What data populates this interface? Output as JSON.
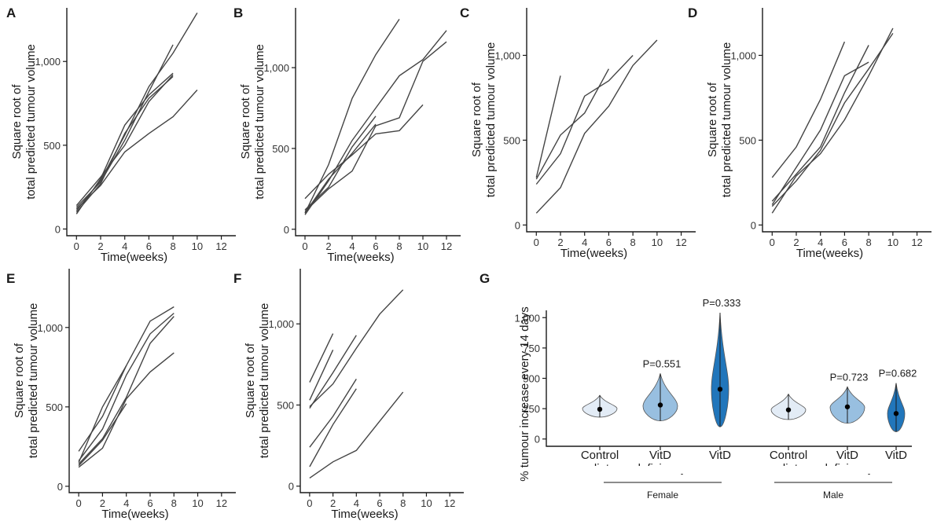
{
  "colors": {
    "line": "#444444",
    "control": "#e3ecf6",
    "deficiency": "#98bfe0",
    "excess": "#2176bb"
  },
  "chart_data": [
    {
      "panel": "A",
      "type": "line",
      "ylabel_lines": [
        "Square root of",
        "total predicted tumour volume"
      ],
      "xlabel": "Time(weeks)",
      "xticks": [
        0,
        2,
        4,
        6,
        8,
        10,
        12
      ],
      "yticks": [
        {
          "v": 0,
          "t": "0"
        },
        {
          "v": 500,
          "t": "500"
        },
        {
          "v": 1000,
          "t": "1,000"
        }
      ],
      "ylim": [
        -40,
        1320
      ],
      "series": [
        {
          "x": [
            0,
            2,
            4,
            6,
            8,
            10
          ],
          "y": [
            110,
            290,
            560,
            850,
            1050,
            1290
          ]
        },
        {
          "x": [
            0,
            2,
            4,
            6,
            8
          ],
          "y": [
            90,
            300,
            620,
            800,
            930
          ]
        },
        {
          "x": [
            0,
            2,
            4,
            6,
            8
          ],
          "y": [
            130,
            280,
            530,
            820,
            1100
          ]
        },
        {
          "x": [
            0,
            2,
            4,
            6,
            8
          ],
          "y": [
            100,
            270,
            570,
            780,
            910
          ]
        },
        {
          "x": [
            0,
            2,
            4,
            6,
            8,
            10
          ],
          "y": [
            120,
            260,
            460,
            570,
            670,
            830
          ]
        },
        {
          "x": [
            0,
            2,
            4,
            6,
            8
          ],
          "y": [
            140,
            310,
            500,
            760,
            920
          ]
        }
      ]
    },
    {
      "panel": "B",
      "type": "line",
      "ylabel_lines": [
        "Square root of",
        "total predicted tumour volume"
      ],
      "xlabel": "Time(weeks)",
      "xticks": [
        0,
        2,
        4,
        6,
        8,
        10,
        12
      ],
      "yticks": [
        {
          "v": 0,
          "t": "0"
        },
        {
          "v": 500,
          "t": "500"
        },
        {
          "v": 1000,
          "t": "1,000"
        }
      ],
      "ylim": [
        -40,
        1370
      ],
      "series": [
        {
          "x": [
            0,
            2,
            4,
            6,
            8
          ],
          "y": [
            100,
            400,
            810,
            1080,
            1300
          ]
        },
        {
          "x": [
            0,
            2,
            4,
            6,
            8,
            10,
            12
          ],
          "y": [
            90,
            300,
            550,
            750,
            950,
            1050,
            1230
          ]
        },
        {
          "x": [
            0,
            2,
            4,
            6,
            8,
            10,
            12
          ],
          "y": [
            110,
            250,
            360,
            640,
            690,
            1040,
            1160
          ]
        },
        {
          "x": [
            0,
            2,
            4,
            6,
            8,
            10
          ],
          "y": [
            190,
            340,
            460,
            590,
            610,
            770
          ]
        },
        {
          "x": [
            0,
            2,
            4,
            6
          ],
          "y": [
            120,
            260,
            510,
            700
          ]
        },
        {
          "x": [
            0,
            2,
            4,
            6
          ],
          "y": [
            100,
            310,
            470,
            650
          ]
        }
      ]
    },
    {
      "panel": "C",
      "type": "line",
      "ylabel_lines": [
        "Square root of",
        "total predicted tumour volume"
      ],
      "xlabel": "Time(weeks)",
      "xticks": [
        0,
        2,
        4,
        6,
        8,
        10,
        12
      ],
      "yticks": [
        {
          "v": 0,
          "t": "0"
        },
        {
          "v": 500,
          "t": "500"
        },
        {
          "v": 1000,
          "t": "1,000"
        }
      ],
      "ylim": [
        -40,
        1280
      ],
      "series": [
        {
          "x": [
            0,
            2
          ],
          "y": [
            280,
            880
          ]
        },
        {
          "x": [
            0,
            2,
            4,
            6,
            8
          ],
          "y": [
            240,
            420,
            760,
            850,
            1000
          ]
        },
        {
          "x": [
            0,
            2,
            4,
            6
          ],
          "y": [
            270,
            530,
            660,
            920
          ]
        },
        {
          "x": [
            0,
            2,
            4,
            6,
            8,
            10
          ],
          "y": [
            70,
            220,
            540,
            700,
            940,
            1090
          ]
        }
      ]
    },
    {
      "panel": "D",
      "type": "line",
      "ylabel_lines": [
        "Square root of",
        "total predicted tumour volume"
      ],
      "xlabel": "Time(weeks)",
      "xticks": [
        0,
        2,
        4,
        6,
        8,
        10,
        12
      ],
      "yticks": [
        {
          "v": 0,
          "t": "0"
        },
        {
          "v": 500,
          "t": "500"
        },
        {
          "v": 1000,
          "t": "1,000"
        }
      ],
      "ylim": [
        -40,
        1280
      ],
      "series": [
        {
          "x": [
            0,
            2,
            4,
            6
          ],
          "y": [
            280,
            460,
            740,
            1080
          ]
        },
        {
          "x": [
            0,
            2,
            4,
            6,
            8
          ],
          "y": [
            120,
            340,
            560,
            880,
            960
          ]
        },
        {
          "x": [
            0,
            2,
            4,
            6,
            8
          ],
          "y": [
            140,
            300,
            460,
            780,
            1060
          ]
        },
        {
          "x": [
            0,
            2,
            4,
            6,
            8,
            10
          ],
          "y": [
            70,
            290,
            420,
            620,
            880,
            1160
          ]
        },
        {
          "x": [
            0,
            2,
            4,
            6,
            8,
            10
          ],
          "y": [
            110,
            260,
            440,
            720,
            920,
            1130
          ]
        }
      ]
    },
    {
      "panel": "E",
      "type": "line",
      "ylabel_lines": [
        "Square root of",
        "total predicted tumour volume"
      ],
      "xlabel": "Time(weeks)",
      "xticks": [
        0,
        2,
        4,
        6,
        8,
        10,
        12
      ],
      "yticks": [
        {
          "v": 0,
          "t": "0"
        },
        {
          "v": 500,
          "t": "500"
        },
        {
          "v": 1000,
          "t": "1,000"
        }
      ],
      "ylim": [
        -40,
        1370
      ],
      "series": [
        {
          "x": [
            0,
            2,
            4,
            6,
            8
          ],
          "y": [
            220,
            440,
            760,
            1040,
            1130
          ]
        },
        {
          "x": [
            0,
            2,
            4,
            6,
            8
          ],
          "y": [
            140,
            300,
            560,
            900,
            1070
          ]
        },
        {
          "x": [
            0,
            2,
            4,
            6,
            8
          ],
          "y": [
            160,
            360,
            700,
            960,
            1090
          ]
        },
        {
          "x": [
            0,
            2,
            4,
            6,
            8
          ],
          "y": [
            120,
            240,
            550,
            720,
            840
          ]
        },
        {
          "x": [
            0,
            2,
            4
          ],
          "y": [
            150,
            500,
            760
          ]
        },
        {
          "x": [
            0,
            2,
            4
          ],
          "y": [
            130,
            290,
            520
          ]
        }
      ]
    },
    {
      "panel": "F",
      "type": "line",
      "ylabel_lines": [
        "Square root of",
        "total predicted tumour volume"
      ],
      "xlabel": "Time(weeks)",
      "xticks": [
        0,
        2,
        4,
        6,
        8,
        10,
        12
      ],
      "yticks": [
        {
          "v": 0,
          "t": "0"
        },
        {
          "v": 500,
          "t": "500"
        },
        {
          "v": 1000,
          "t": "1,000"
        }
      ],
      "ylim": [
        -40,
        1340
      ],
      "series": [
        {
          "x": [
            0,
            2
          ],
          "y": [
            640,
            940
          ]
        },
        {
          "x": [
            0,
            2
          ],
          "y": [
            530,
            840
          ]
        },
        {
          "x": [
            0,
            2,
            4,
            6,
            8
          ],
          "y": [
            490,
            630,
            850,
            1060,
            1210
          ]
        },
        {
          "x": [
            0,
            2,
            4
          ],
          "y": [
            480,
            700,
            930
          ]
        },
        {
          "x": [
            0,
            2,
            4
          ],
          "y": [
            240,
            430,
            660
          ]
        },
        {
          "x": [
            0,
            2,
            4
          ],
          "y": [
            120,
            380,
            600
          ]
        },
        {
          "x": [
            0,
            2,
            4,
            6,
            8
          ],
          "y": [
            50,
            150,
            220,
            400,
            580
          ]
        }
      ]
    },
    {
      "panel": "G",
      "type": "violin",
      "ylabel": "% tumour increase every 14 days",
      "yticks": [
        {
          "v": 0,
          "t": "0"
        },
        {
          "v": 250,
          "t": "250"
        },
        {
          "v": 500,
          "t": "500"
        },
        {
          "v": 750,
          "t": "750"
        },
        {
          "v": 1000,
          "t": "1,000"
        }
      ],
      "ylim": [
        -60,
        1060
      ],
      "groups": [
        {
          "name_lines": [
            "Control",
            "diet"
          ],
          "sex": "Female",
          "color_key": "control",
          "min": 180,
          "max": 360,
          "median": 250,
          "mean": 245,
          "p": ""
        },
        {
          "name_lines": [
            "VitD",
            "deficiency"
          ],
          "sex": "Female",
          "color_key": "deficiency",
          "min": 150,
          "max": 540,
          "median": 270,
          "mean": 280,
          "p": "P=0.551"
        },
        {
          "name_lines": [
            "VitD",
            "excess"
          ],
          "sex": "Female",
          "color_key": "excess",
          "min": 100,
          "max": 1040,
          "median": 410,
          "mean": 410,
          "p": "P=0.333"
        },
        {
          "name_lines": [
            "Control",
            "diet"
          ],
          "sex": "Male",
          "color_key": "control",
          "min": 160,
          "max": 370,
          "median": 240,
          "mean": 240,
          "p": ""
        },
        {
          "name_lines": [
            "VitD",
            "deficiency"
          ],
          "sex": "Male",
          "color_key": "deficiency",
          "min": 130,
          "max": 430,
          "median": 260,
          "mean": 265,
          "p": "P=0.723"
        },
        {
          "name_lines": [
            "VitD",
            "excess"
          ],
          "sex": "Male",
          "color_key": "excess",
          "min": 60,
          "max": 460,
          "median": 210,
          "mean": 210,
          "p": "P=0.682"
        }
      ],
      "sex_labels": [
        "Female",
        "Male"
      ]
    }
  ]
}
